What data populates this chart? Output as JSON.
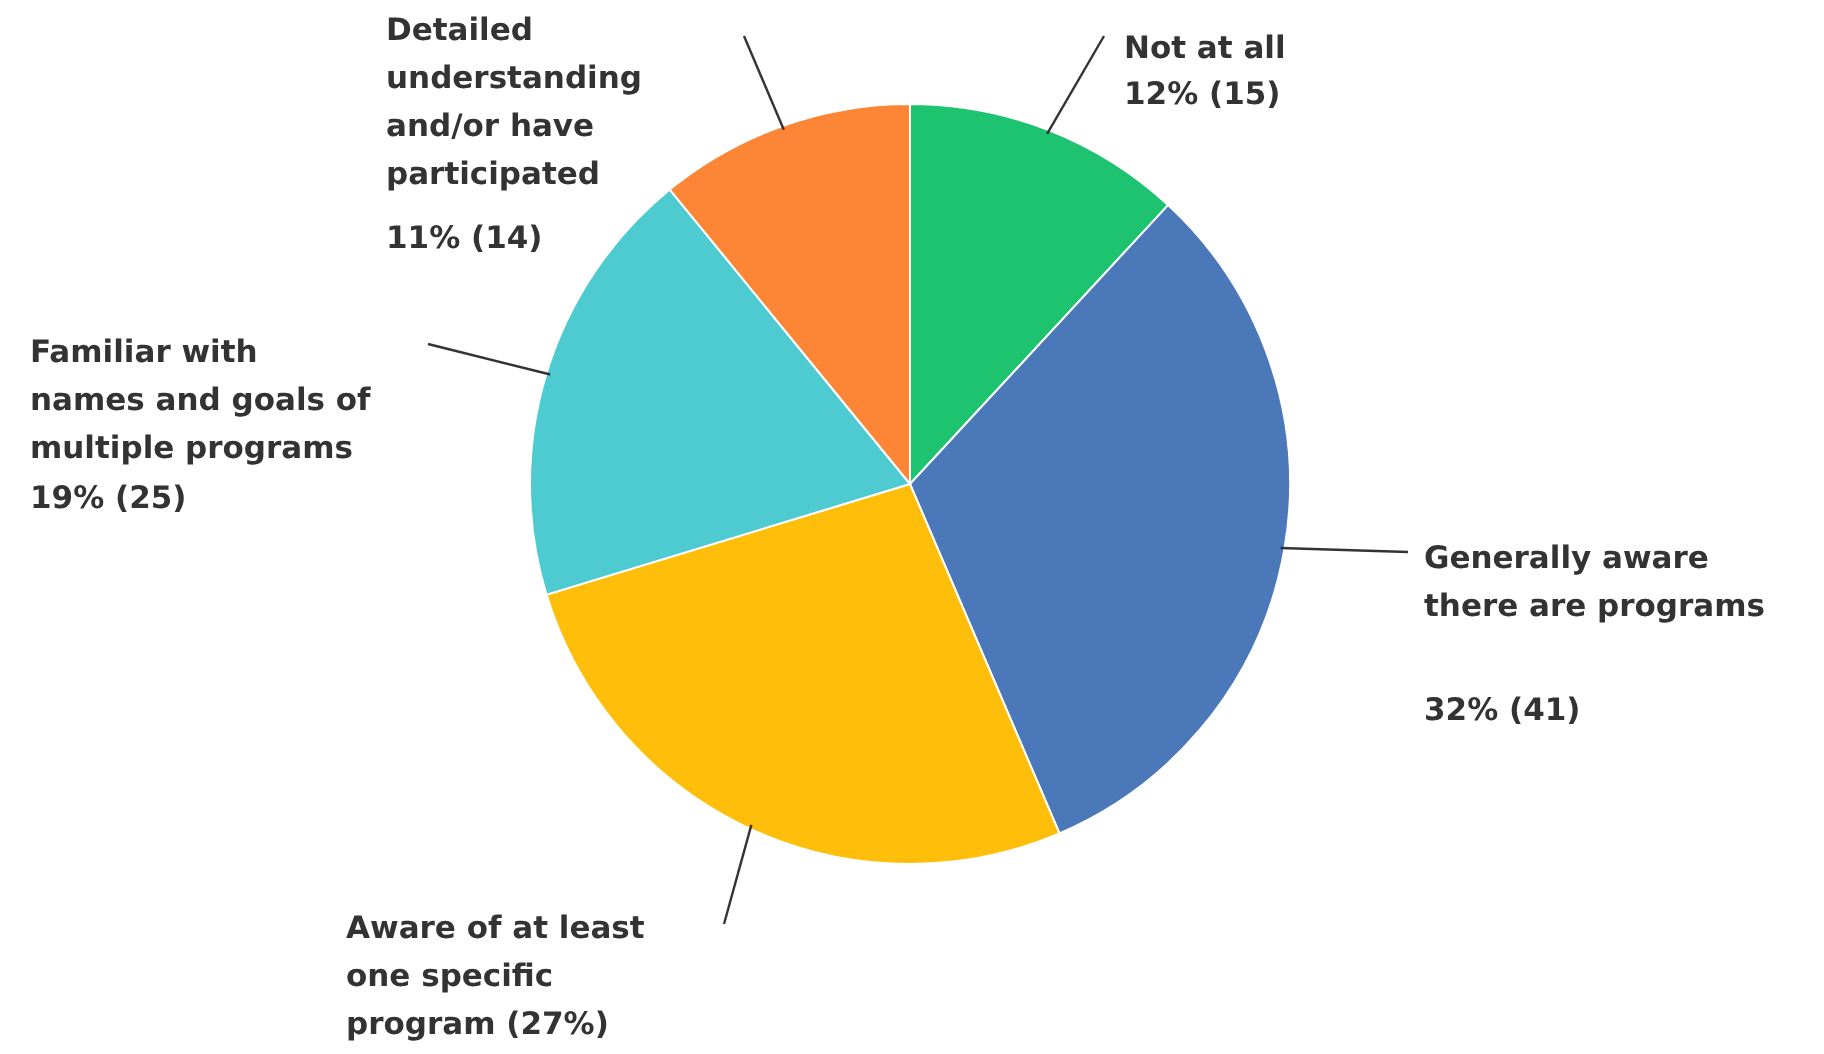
{
  "chart_data": {
    "type": "pie",
    "categories": [
      "Not at all",
      "Generally aware there are programs",
      "Aware of at least one specific program",
      "Familiar with names and goals of multiple programs",
      "Detailed understanding and/or have participated"
    ],
    "values": [
      12,
      32,
      27,
      19,
      11
    ],
    "colors": [
      "#1dc36f",
      "#4a78b9",
      "#ffbe0a",
      "#4ecbd0",
      "#fd8636"
    ],
    "value_labels": [
      "12% (15)",
      "32% (41)",
      "(27%)",
      "19% (25)",
      "11% (14)"
    ]
  }
}
